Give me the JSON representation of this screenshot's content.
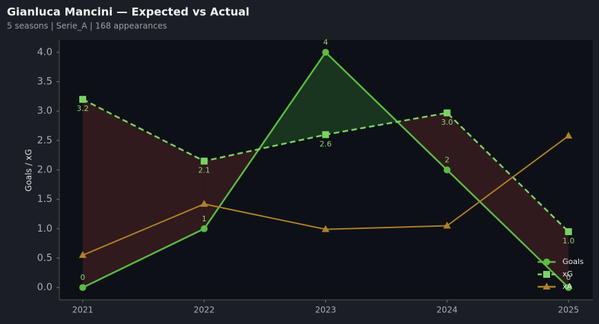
{
  "header": {
    "title": "Gianluca Mancini — Expected vs Actual",
    "subtitle": "5 seasons | Serie_A | 168 appearances"
  },
  "chart_data": {
    "type": "line",
    "ylabel": "Goals / xG",
    "x": [
      2021,
      2022,
      2023,
      2024,
      2025
    ],
    "xlim": [
      2020.807,
      2025.2
    ],
    "xticks": [
      2021,
      2022,
      2023,
      2024,
      2025
    ],
    "ylim": [
      -0.21,
      4.21
    ],
    "yticks": [
      {
        "value": 0,
        "label": "0.0"
      },
      {
        "value": 0.5,
        "label": "0.5"
      },
      {
        "value": 1,
        "label": "1.0"
      },
      {
        "value": 1.5,
        "label": "1.5"
      },
      {
        "value": 2,
        "label": "2.0"
      },
      {
        "value": 2.5,
        "label": "2.5"
      },
      {
        "value": 3,
        "label": "3.0"
      },
      {
        "value": 3.5,
        "label": "3.5"
      },
      {
        "value": 4,
        "label": "4.0"
      }
    ],
    "legend": "lower right",
    "fill_between": {
      "above_color": "#1c3a20",
      "below_color": "#341c1e"
    },
    "series": [
      {
        "name": "Goals",
        "color": "#5cbb45",
        "dash": "solid",
        "marker": "circle",
        "values": [
          0,
          1,
          4,
          2,
          0
        ],
        "value_labels": [
          "0",
          "1",
          "4",
          "2",
          "0"
        ]
      },
      {
        "name": "xG",
        "color": "#7bd266",
        "dash": "dashed",
        "marker": "square",
        "values": [
          3.2,
          2.15,
          2.6,
          2.97,
          0.95
        ],
        "value_labels": [
          "3.2",
          "2.1",
          "2.6",
          "3.0",
          "1.0"
        ]
      },
      {
        "name": "xA",
        "color": "#b08128",
        "dash": "solid",
        "marker": "triangle",
        "values": [
          0.55,
          1.42,
          0.99,
          1.05,
          2.58
        ]
      }
    ]
  }
}
